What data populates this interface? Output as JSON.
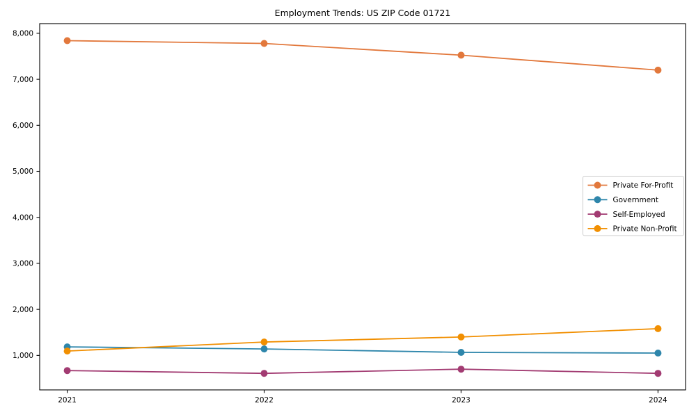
{
  "chart_data": {
    "type": "line",
    "title": "Employment Trends: US ZIP Code 01721",
    "xlabel": "",
    "ylabel": "",
    "x": [
      2021,
      2022,
      2023,
      2024
    ],
    "x_tick_labels": [
      "2021",
      "2022",
      "2023",
      "2024"
    ],
    "y_ticks": [
      1000,
      2000,
      3000,
      4000,
      5000,
      6000,
      7000,
      8000
    ],
    "y_tick_labels": [
      "1,000",
      "2,000",
      "3,000",
      "4,000",
      "5,000",
      "6,000",
      "7,000",
      "8,000"
    ],
    "xlim": [
      2020.86,
      2024.14
    ],
    "ylim": [
      250,
      8210
    ],
    "grid": false,
    "legend_position": "center right",
    "legend_border_color": "#cccccc",
    "axis_color": "#000000",
    "series": [
      {
        "name": "Private For-Profit",
        "color": "#E2783C",
        "marker": "circle-icon",
        "values": [
          7840,
          7780,
          7525,
          7200
        ]
      },
      {
        "name": "Government",
        "color": "#2E86AB",
        "marker": "circle-icon",
        "values": [
          1185,
          1140,
          1065,
          1050
        ]
      },
      {
        "name": "Self-Employed",
        "color": "#A23B72",
        "marker": "circle-icon",
        "values": [
          670,
          610,
          700,
          610
        ]
      },
      {
        "name": "Private Non-Profit",
        "color": "#F18F01",
        "marker": "circle-icon",
        "values": [
          1095,
          1290,
          1400,
          1580
        ]
      }
    ]
  }
}
